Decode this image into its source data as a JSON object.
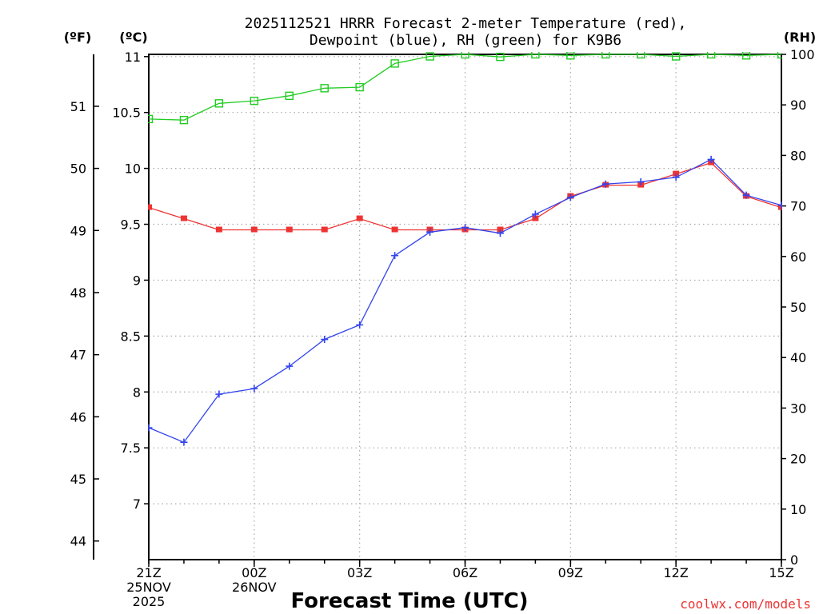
{
  "chart_data": {
    "type": "line",
    "title_line1": "2025112521 HRRR Forecast 2-meter Temperature (red),",
    "title_line2": "Dewpoint (blue), RH (green) for K9B6",
    "unit_f": "(ºF)",
    "unit_c": "(ºC)",
    "unit_rh": "(RH)",
    "xlabel": "Forecast Time (UTC)",
    "credit": "coolwx.com/models",
    "x_hours": [
      0,
      1,
      2,
      3,
      4,
      5,
      6,
      7,
      8,
      9,
      10,
      11,
      12,
      13,
      14,
      15,
      16,
      17,
      18
    ],
    "x_ticks": [
      {
        "hour": 0,
        "label": "21Z",
        "sub1": "25NOV",
        "sub2": "2025"
      },
      {
        "hour": 3,
        "label": "00Z",
        "sub1": "26NOV",
        "sub2": ""
      },
      {
        "hour": 6,
        "label": "03Z",
        "sub1": "",
        "sub2": ""
      },
      {
        "hour": 9,
        "label": "06Z",
        "sub1": "",
        "sub2": ""
      },
      {
        "hour": 12,
        "label": "09Z",
        "sub1": "",
        "sub2": ""
      },
      {
        "hour": 15,
        "label": "12Z",
        "sub1": "",
        "sub2": ""
      },
      {
        "hour": 18,
        "label": "15Z",
        "sub1": "",
        "sub2": ""
      }
    ],
    "celsius_axis": {
      "min": 6.5,
      "max": 11.02,
      "ticks": [
        7,
        7.5,
        8,
        8.5,
        9,
        9.5,
        10,
        10.5,
        11
      ],
      "tick_labels": [
        "7",
        "7.5",
        "8",
        "8.5",
        "9",
        "9.5",
        "10",
        "10.5",
        "11"
      ]
    },
    "fahrenheit_ticks": [
      44,
      45,
      46,
      47,
      48,
      49,
      50,
      51
    ],
    "rh_axis": {
      "min": 0,
      "max": 100,
      "ticks": [
        0,
        10,
        20,
        30,
        40,
        50,
        60,
        70,
        80,
        90,
        100
      ]
    },
    "series": [
      {
        "name": "Temperature",
        "unit": "C",
        "color": "#ee3333",
        "marker": "filled-square",
        "values": [
          9.65,
          9.55,
          9.45,
          9.45,
          9.45,
          9.45,
          9.55,
          9.45,
          9.45,
          9.45,
          9.45,
          9.55,
          9.75,
          9.85,
          9.85,
          9.95,
          10.05,
          9.75,
          9.65
        ]
      },
      {
        "name": "Dewpoint",
        "unit": "C",
        "color": "#3344ee",
        "marker": "plus",
        "values": [
          7.68,
          7.55,
          7.98,
          8.03,
          8.23,
          8.47,
          8.6,
          9.22,
          9.43,
          9.47,
          9.42,
          9.59,
          9.74,
          9.86,
          9.88,
          9.92,
          10.08,
          9.76,
          9.67
        ]
      },
      {
        "name": "RH",
        "unit": "%",
        "color": "#22cc22",
        "marker": "open-square",
        "values": [
          87.2,
          87,
          90.3,
          90.8,
          91.8,
          93.3,
          93.5,
          98.2,
          99.6,
          100,
          99.5,
          100,
          99.8,
          100,
          100,
          99.6,
          100,
          99.8,
          100
        ]
      }
    ]
  }
}
